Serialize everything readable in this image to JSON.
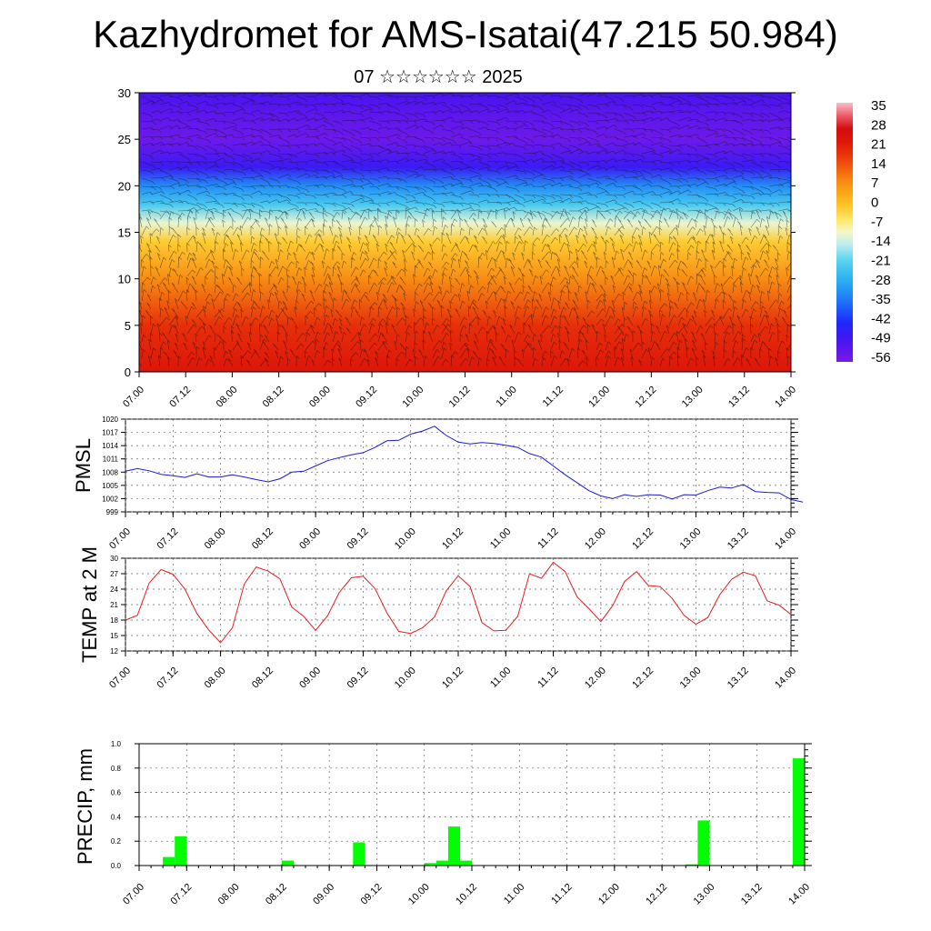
{
  "title": "Kazhydromet for AMS-Isatai(47.215 50.984)",
  "subtitle": "07 ☆☆☆☆☆☆ 2025",
  "time_labels": [
    "07.00",
    "07.12",
    "08.00",
    "08.12",
    "09.00",
    "09.12",
    "10.00",
    "10.12",
    "11.00",
    "11.12",
    "12.00",
    "12.12",
    "13.00",
    "13.12",
    "14.00"
  ],
  "chart_data": [
    {
      "type": "heatmap",
      "title": "",
      "ylabel": "",
      "ylim": [
        0,
        30
      ],
      "yticks": [
        0,
        5,
        10,
        15,
        20,
        25,
        30
      ],
      "x_labels": [
        "07.00",
        "07.12",
        "08.00",
        "08.12",
        "09.00",
        "09.12",
        "10.00",
        "10.12",
        "11.00",
        "11.12",
        "12.00",
        "12.12",
        "13.00",
        "13.12",
        "14.00"
      ],
      "colorbar_labels": [
        "35",
        "28",
        "21",
        "14",
        "7",
        "0",
        "-7",
        "-14",
        "-21",
        "-28",
        "-35",
        "-42",
        "-49",
        "-56"
      ],
      "colorbar_range": [
        -60,
        38
      ],
      "temperature_by_level": [
        {
          "y": 0,
          "value": 24
        },
        {
          "y": 5,
          "value": 19
        },
        {
          "y": 10,
          "value": 8
        },
        {
          "y": 14,
          "value": -2
        },
        {
          "y": 16,
          "value": -12
        },
        {
          "y": 18,
          "value": -24
        },
        {
          "y": 20,
          "value": -34
        },
        {
          "y": 22,
          "value": -50
        },
        {
          "y": 25,
          "value": -58
        },
        {
          "y": 28,
          "value": -55
        },
        {
          "y": 30,
          "value": -52
        }
      ],
      "overlay": "wind barbs"
    },
    {
      "type": "line",
      "ylabel": "PMSL",
      "ylim": [
        999,
        1020
      ],
      "yticks": [
        999,
        1002,
        1005,
        1008,
        1011,
        1014,
        1017,
        1020
      ],
      "x_labels": [
        "07.00",
        "07.12",
        "08.00",
        "08.12",
        "09.00",
        "09.12",
        "10.00",
        "10.12",
        "11.00",
        "11.12",
        "12.00",
        "12.12",
        "13.00",
        "13.12",
        "14.00"
      ],
      "series": [
        {
          "color": "#1a1adc",
          "step_hours": 3,
          "values": [
            1008.2,
            1008.8,
            1008.3,
            1007.5,
            1007.2,
            1006.8,
            1007.6,
            1006.9,
            1006.9,
            1007.4,
            1006.9,
            1006.3,
            1005.8,
            1006.5,
            1008.0,
            1008.2,
            1009.4,
            1010.6,
            1011.3,
            1011.9,
            1012.4,
            1013.6,
            1015.1,
            1015.2,
            1016.6,
            1017.3,
            1018.4,
            1016.3,
            1014.8,
            1014.4,
            1014.7,
            1014.5,
            1014.1,
            1013.6,
            1012.2,
            1011.4,
            1009.4,
            1007.4,
            1005.6,
            1003.8,
            1002.6,
            1002.0,
            1002.9,
            1002.5,
            1002.9,
            1002.8,
            1001.9,
            1002.9,
            1002.8,
            1003.8,
            1004.6,
            1004.4,
            1005.2,
            1003.6,
            1003.4,
            1003.3,
            1001.8,
            1001.2
          ]
        }
      ]
    },
    {
      "type": "line",
      "ylabel": "TEMP at 2 M",
      "ylim": [
        12,
        30
      ],
      "yticks": [
        12,
        15,
        18,
        21,
        24,
        27,
        30
      ],
      "x_labels": [
        "07.00",
        "07.12",
        "08.00",
        "08.12",
        "09.00",
        "09.12",
        "10.00",
        "10.12",
        "11.00",
        "11.12",
        "12.00",
        "12.12",
        "13.00",
        "13.12",
        "14.00"
      ],
      "series": [
        {
          "color": "#e81e1e",
          "step_hours": 3,
          "values": [
            18.0,
            18.9,
            25.2,
            27.8,
            26.9,
            24.0,
            19.3,
            16.1,
            13.6,
            16.5,
            25.0,
            28.3,
            27.5,
            26.0,
            20.5,
            18.7,
            16.0,
            18.8,
            23.4,
            26.2,
            26.5,
            24.1,
            19.4,
            15.8,
            15.4,
            16.5,
            18.6,
            23.7,
            26.6,
            24.5,
            17.5,
            15.9,
            16.0,
            18.7,
            27.0,
            26.1,
            29.2,
            27.4,
            22.5,
            20.2,
            17.7,
            20.8,
            25.5,
            27.4,
            24.7,
            24.5,
            22.2,
            18.9,
            17.2,
            18.5,
            22.9,
            25.9,
            27.3,
            26.6,
            21.7,
            20.9,
            19.1
          ]
        }
      ]
    },
    {
      "type": "bar",
      "ylabel": "PRECIP, mm",
      "ylim": [
        0,
        1.0
      ],
      "yticks": [
        "0.0",
        "0.2",
        "0.4",
        "0.6",
        "0.8",
        "1.0"
      ],
      "x_labels": [
        "07.00",
        "07.12",
        "08.00",
        "08.12",
        "09.00",
        "09.12",
        "10.00",
        "10.12",
        "11.00",
        "11.12",
        "12.00",
        "12.12",
        "13.00",
        "13.12",
        "14.00"
      ],
      "bar_color": "#00ff00",
      "bars": [
        {
          "hour": 9,
          "value": 0.07
        },
        {
          "hour": 12,
          "value": 0.24
        },
        {
          "hour": 39,
          "value": 0.04
        },
        {
          "hour": 57,
          "value": 0.19
        },
        {
          "hour": 75,
          "value": 0.02
        },
        {
          "hour": 78,
          "value": 0.04
        },
        {
          "hour": 81,
          "value": 0.32
        },
        {
          "hour": 84,
          "value": 0.04
        },
        {
          "hour": 141,
          "value": 0.01
        },
        {
          "hour": 144,
          "value": 0.37
        },
        {
          "hour": 168,
          "value": 0.88
        }
      ]
    }
  ]
}
